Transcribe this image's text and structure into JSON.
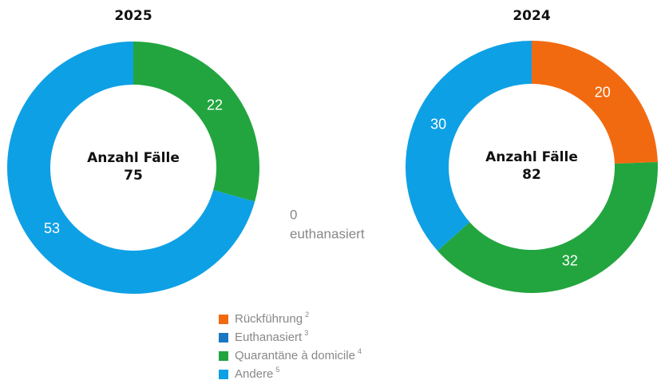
{
  "chart_data": [
    {
      "type": "pie",
      "title": "2025",
      "center_label": "Anzahl Fälle",
      "total": 75,
      "values": [
        0,
        0,
        22,
        53
      ]
    },
    {
      "type": "pie",
      "title": "2024",
      "center_label": "Anzahl Fälle",
      "total": 82,
      "values": [
        20,
        0,
        32,
        30
      ]
    }
  ],
  "legend": [
    {
      "label": "Rückführung",
      "note": "2",
      "color": "#f26a10"
    },
    {
      "label": "Euthanasiert",
      "note": "3",
      "color": "#1a78c2"
    },
    {
      "label": "Quarantäne à domicile",
      "note": "4",
      "color": "#22a53f"
    },
    {
      "label": "Andere",
      "note": "5",
      "color": "#0ea0e5"
    }
  ],
  "annotation": {
    "value": 0,
    "text": "euthanasiert"
  }
}
